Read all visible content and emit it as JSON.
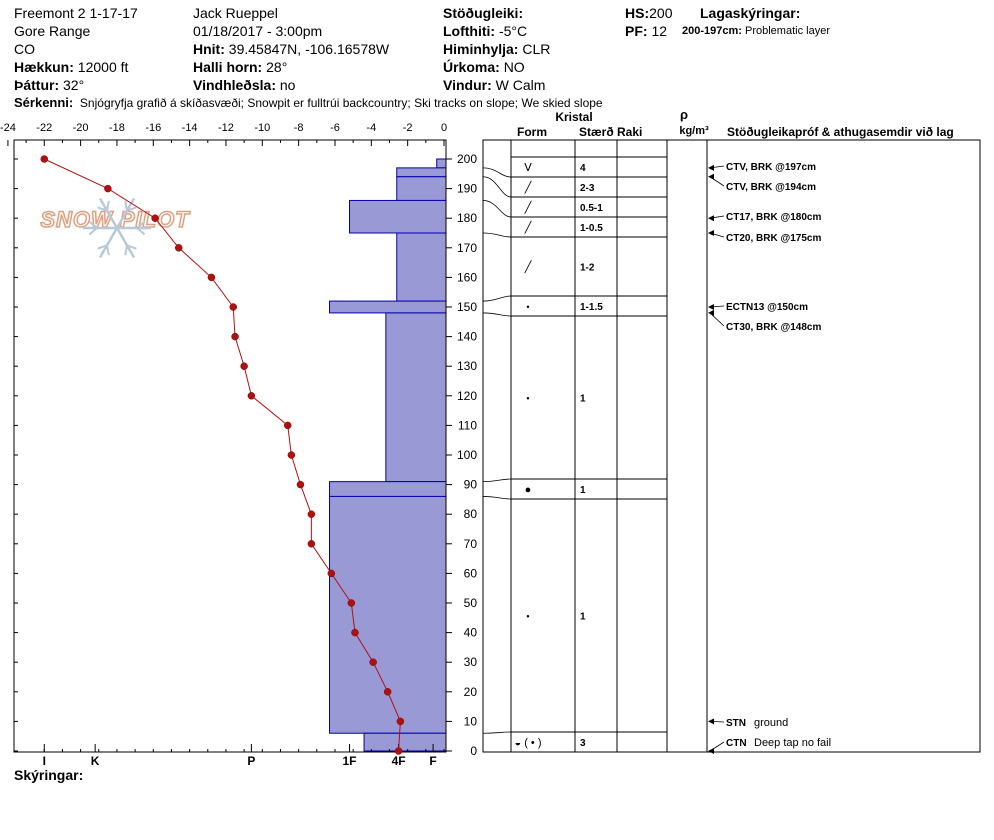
{
  "header": {
    "location": "Freemont 2 1-17-17",
    "range": "Gore Range",
    "state": "CO",
    "elevation_label": "Hækkun:",
    "elevation_value": "12000 ft",
    "aspect_label": "Þáttur:",
    "aspect_value": "32°",
    "observer": "Jack Rueppel",
    "datetime": "01/18/2017 - 3:00pm",
    "coords_label": "Hnit:",
    "coords_value": "39.45847N, -106.16578W",
    "slope_label": "Halli horn:",
    "slope_value": "28°",
    "wind_loading_label": "Vindhleðsla:",
    "wind_loading_value": "no",
    "stability_label": "Stöðugleiki:",
    "stability_value": "",
    "air_temp_label": "Lofthiti:",
    "air_temp_value": "-5°C",
    "sky_label": "Himinhylja:",
    "sky_value": "CLR",
    "precip_label": "Úrkoma:",
    "precip_value": "NO",
    "wind_label": "Vindur:",
    "wind_value": "W Calm",
    "hs_label": "HS:",
    "hs_value": "200",
    "pf_label": "PF:",
    "pf_value": "12",
    "layer_notes_label": "Lagaskýringar:",
    "layer_note_range": "200-197cm:",
    "layer_note_text": "Problematic layer",
    "features_label": "Sérkenni:",
    "features_value": "Snjógryfja grafið á skíðasvæði;  Snowpit er fulltrúi backcountry;  Ski tracks on slope;  We skied slope",
    "comments_label": "Skýringar:",
    "logo_text": "SNOW PILOT"
  },
  "columns": {
    "crystal": "Kristal",
    "form": "Form",
    "size": "Stærð",
    "moisture": "Raki",
    "rho": "ρ",
    "density_unit": "kg/m³",
    "tests": "Stöðugleikapróf & athugasemdir við lag"
  },
  "chart_data": {
    "type": "snow_profile",
    "temperature_axis": {
      "range": [
        -24,
        0
      ],
      "ticks": [
        "-24",
        "-22",
        "-20",
        "-18",
        "-16",
        "-14",
        "-12",
        "-10",
        "-8",
        "-6",
        "-4",
        "-2",
        "0"
      ]
    },
    "height_axis": {
      "range": [
        0,
        200
      ],
      "ticks": [
        "0",
        "10",
        "20",
        "30",
        "40",
        "50",
        "60",
        "70",
        "80",
        "90",
        "100",
        "110",
        "120",
        "130",
        "140",
        "150",
        "160",
        "170",
        "180",
        "190",
        "200"
      ]
    },
    "hardness_axis": {
      "labels": [
        "I",
        "K",
        "P",
        "1F",
        "4F",
        "F"
      ],
      "positions_deg": [
        -22,
        -19.2,
        -10.6,
        -5.2,
        -2.5,
        -0.6
      ]
    },
    "temperature_profile": [
      {
        "h": 200,
        "t": -22
      },
      {
        "h": 190,
        "t": -18.5
      },
      {
        "h": 180,
        "t": -15.9
      },
      {
        "h": 170,
        "t": -14.6
      },
      {
        "h": 160,
        "t": -12.8
      },
      {
        "h": 150,
        "t": -11.6
      },
      {
        "h": 140,
        "t": -11.5
      },
      {
        "h": 130,
        "t": -11.0
      },
      {
        "h": 120,
        "t": -10.6
      },
      {
        "h": 110,
        "t": -8.6
      },
      {
        "h": 100,
        "t": -8.4
      },
      {
        "h": 90,
        "t": -7.9
      },
      {
        "h": 80,
        "t": -7.3
      },
      {
        "h": 70,
        "t": -7.3
      },
      {
        "h": 60,
        "t": -6.2
      },
      {
        "h": 50,
        "t": -5.1
      },
      {
        "h": 40,
        "t": -4.9
      },
      {
        "h": 30,
        "t": -3.9
      },
      {
        "h": 20,
        "t": -3.1
      },
      {
        "h": 10,
        "t": -2.4
      },
      {
        "h": 0,
        "t": -2.5
      }
    ],
    "hardness_layers": [
      {
        "top": 200,
        "bottom": 197,
        "hardness": -0.4
      },
      {
        "top": 197,
        "bottom": 194,
        "hardness": -2.6
      },
      {
        "top": 194,
        "bottom": 186,
        "hardness": -2.6
      },
      {
        "top": 186,
        "bottom": 175,
        "hardness": -5.2
      },
      {
        "top": 175,
        "bottom": 152,
        "hardness": -2.6
      },
      {
        "top": 152,
        "bottom": 148,
        "hardness": -6.3
      },
      {
        "top": 148,
        "bottom": 91,
        "hardness": -3.2
      },
      {
        "top": 91,
        "bottom": 86,
        "hardness": -6.3
      },
      {
        "top": 86,
        "bottom": 6,
        "hardness": -6.3
      },
      {
        "top": 6,
        "bottom": 0,
        "hardness": -4.4
      }
    ],
    "layers": [
      {
        "top": 200,
        "bottom": 197,
        "form": "ᐯ",
        "size": "4"
      },
      {
        "top": 197,
        "bottom": 194,
        "form": "╱",
        "size": "2-3"
      },
      {
        "top": 194,
        "bottom": 186,
        "form": "╱",
        "size": "0.5-1"
      },
      {
        "top": 186,
        "bottom": 175,
        "form": "╱",
        "size": "1-0.5"
      },
      {
        "top": 175,
        "bottom": 152,
        "form": "╱",
        "size": "1-2"
      },
      {
        "top": 152,
        "bottom": 148,
        "form": "•",
        "size": "1-1.5"
      },
      {
        "top": 148,
        "bottom": 91,
        "form": "•",
        "size": "1"
      },
      {
        "top": 91,
        "bottom": 86,
        "form": "●",
        "size": "1"
      },
      {
        "top": 86,
        "bottom": 6,
        "form": "•",
        "size": "1"
      },
      {
        "top": 6,
        "bottom": 0,
        "form": "◒ ( • )",
        "size": "3"
      }
    ],
    "tests": [
      {
        "height": 197,
        "code": "CTV, BRK @197cm",
        "note": ""
      },
      {
        "height": 194,
        "code": "CTV, BRK @194cm",
        "note": ""
      },
      {
        "height": 180,
        "code": "CT17, BRK @180cm",
        "note": ""
      },
      {
        "height": 175,
        "code": "CT20, BRK @175cm",
        "note": ""
      },
      {
        "height": 150,
        "code": "ECTN13 @150cm",
        "note": ""
      },
      {
        "height": 148,
        "code": "CT30, BRK @148cm",
        "note": ""
      },
      {
        "height": 10,
        "code": "STN",
        "note": "ground"
      },
      {
        "height": 0,
        "code": "CTN",
        "note": "Deep tap no fail"
      }
    ],
    "colors": {
      "hardness_fill": "#9999d6",
      "hardness_stroke": "#0000aa",
      "temperature": "#b01010"
    }
  }
}
